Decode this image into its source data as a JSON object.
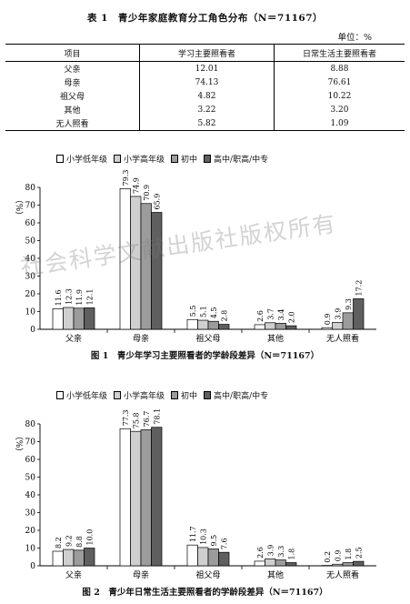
{
  "table1": {
    "title": "表 1　青少年家庭教育分工角色分布（N＝71167）",
    "unit": "单位：%",
    "headers": [
      "项目",
      "学习主要照看者",
      "日常生活主要照看者"
    ],
    "rows": [
      [
        "父亲",
        "12.01",
        "8.88"
      ],
      [
        "母亲",
        "74.13",
        "76.61"
      ],
      [
        "祖父母",
        "4.82",
        "10.22"
      ],
      [
        "其他",
        "3.22",
        "3.20"
      ],
      [
        "无人照看",
        "5.82",
        "1.09"
      ]
    ]
  },
  "legend": [
    "小学低年级",
    "小学高年级",
    "初中",
    "高中/职高/中专"
  ],
  "colors": [
    "#ffffff",
    "#cfcfcf",
    "#9c9c9c",
    "#5f5f5f"
  ],
  "watermark": "社会科学文献出版社版权所有",
  "chart_data": [
    {
      "type": "bar",
      "title": "图 1　青少年学习主要照看者的学龄段差异（N＝71167）",
      "ylabel": "（%）",
      "ylim": [
        0,
        80
      ],
      "yticks": [
        "0",
        "10",
        "20",
        "30",
        "40",
        "50",
        "60",
        "70",
        "80"
      ],
      "categories": [
        "父亲",
        "母亲",
        "祖父母",
        "其他",
        "无人照看"
      ],
      "series": [
        {
          "name": "小学低年级",
          "values": [
            11.6,
            79.3,
            5.5,
            2.6,
            0.9
          ]
        },
        {
          "name": "小学高年级",
          "values": [
            12.3,
            74.9,
            5.1,
            3.7,
            3.9
          ]
        },
        {
          "name": "初中",
          "values": [
            11.9,
            70.9,
            4.5,
            3.4,
            9.3
          ]
        },
        {
          "name": "高中/职高/中专",
          "values": [
            12.1,
            65.9,
            2.8,
            2.0,
            17.2
          ]
        }
      ],
      "labels": [
        [
          "11.6",
          "79.3",
          "5.5",
          "2.6",
          "0.9"
        ],
        [
          "12.3",
          "74.9",
          "5.1",
          "3.7",
          "3.9"
        ],
        [
          "11.9",
          "70.9",
          "4.5",
          "3.4",
          "9.3"
        ],
        [
          "12.1",
          "65.9",
          "2.8",
          "2.0",
          "17.2"
        ]
      ]
    },
    {
      "type": "bar",
      "title": "图 2　青少年日常生活主要照看者的学龄段差异（N＝71167）",
      "ylabel": "（%）",
      "ylim": [
        0,
        80
      ],
      "yticks": [
        "0",
        "10",
        "20",
        "30",
        "40",
        "50",
        "60",
        "70",
        "80"
      ],
      "categories": [
        "父亲",
        "母亲",
        "祖父母",
        "其他",
        "无人照看"
      ],
      "series": [
        {
          "name": "小学低年级",
          "values": [
            8.2,
            77.3,
            11.7,
            2.6,
            0.2
          ]
        },
        {
          "name": "小学高年级",
          "values": [
            9.2,
            75.8,
            10.3,
            3.9,
            0.9
          ]
        },
        {
          "name": "初中",
          "values": [
            8.8,
            76.7,
            9.5,
            3.3,
            1.8
          ]
        },
        {
          "name": "高中/职高/中专",
          "values": [
            10.0,
            78.1,
            7.6,
            1.8,
            2.5
          ]
        }
      ],
      "labels": [
        [
          "8.2",
          "77.3",
          "11.7",
          "2.6",
          "0.2"
        ],
        [
          "9.2",
          "75.8",
          "10.3",
          "3.9",
          "0.9"
        ],
        [
          "8.8",
          "76.7",
          "9.5",
          "3.3",
          "1.8"
        ],
        [
          "10.0",
          "78.1",
          "7.6",
          "1.8",
          "2.5"
        ]
      ]
    }
  ]
}
